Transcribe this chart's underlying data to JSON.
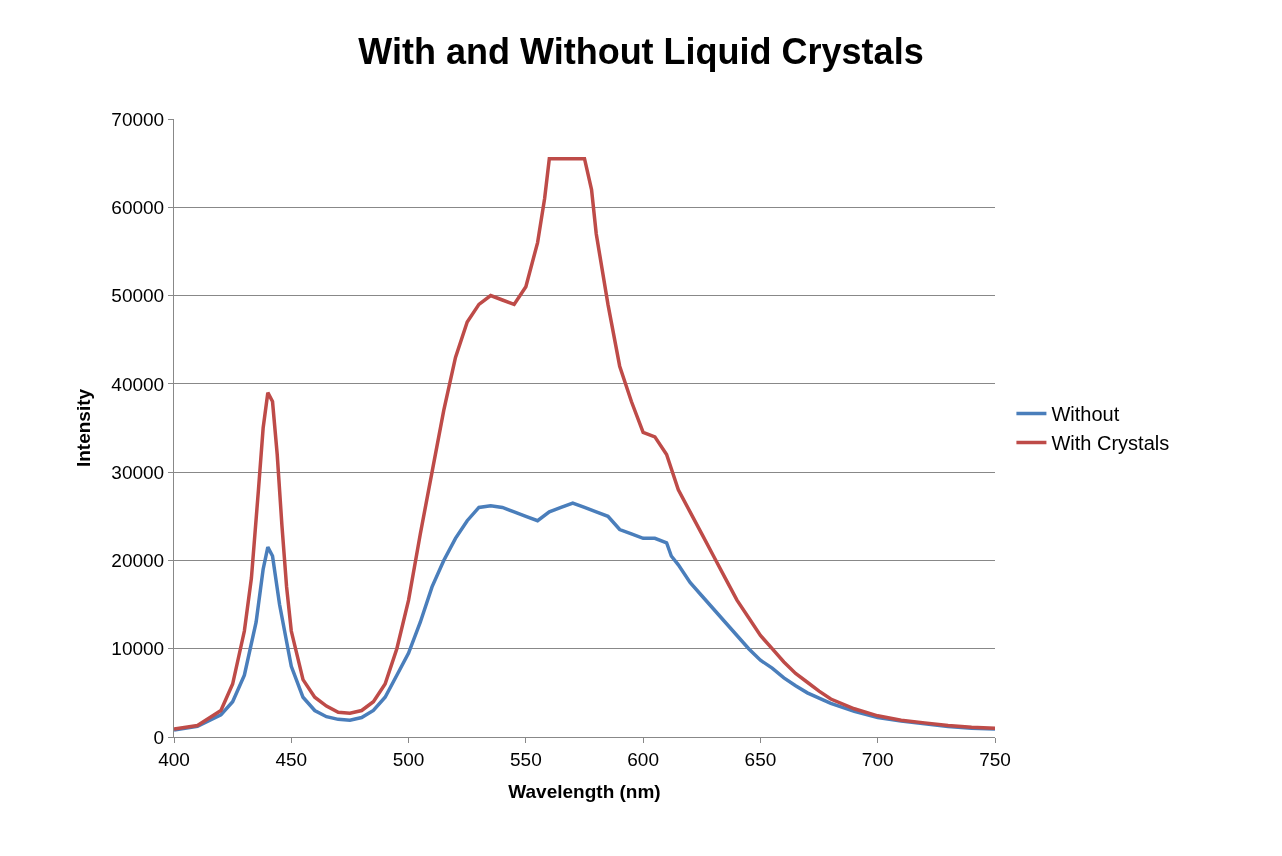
{
  "chart_data": {
    "type": "line",
    "title": "With and Without Liquid Crystals",
    "xlabel": "Wavelength (nm)",
    "ylabel": "Intensity",
    "xlim": [
      400,
      750
    ],
    "xticks": [
      400,
      450,
      500,
      550,
      600,
      650,
      700,
      750
    ],
    "ylim": [
      0,
      70000
    ],
    "yticks": [
      0,
      10000,
      20000,
      30000,
      40000,
      50000,
      60000,
      70000
    ],
    "grid": "y",
    "legend": "right",
    "marker": "none",
    "line_style": "solid",
    "series": [
      {
        "name": "Without",
        "color": "#4a7ebb",
        "x": [
          400,
          410,
          420,
          425,
          430,
          435,
          438,
          440,
          442,
          445,
          450,
          455,
          460,
          465,
          470,
          475,
          480,
          485,
          490,
          495,
          500,
          505,
          510,
          515,
          520,
          525,
          530,
          535,
          540,
          545,
          550,
          555,
          560,
          565,
          570,
          575,
          580,
          585,
          590,
          595,
          600,
          605,
          610,
          612,
          615,
          620,
          625,
          630,
          635,
          640,
          645,
          650,
          655,
          660,
          665,
          670,
          675,
          680,
          690,
          700,
          710,
          720,
          730,
          740,
          750
        ],
        "values": [
          800,
          1200,
          2500,
          4000,
          7000,
          13000,
          19000,
          21500,
          20500,
          15000,
          8000,
          4500,
          3000,
          2300,
          2000,
          1900,
          2200,
          3000,
          4500,
          7000,
          9500,
          13000,
          17000,
          20000,
          22500,
          24500,
          26000,
          26200,
          26000,
          25500,
          25000,
          24500,
          25500,
          26000,
          26500,
          26000,
          25500,
          25000,
          23500,
          23000,
          22500,
          22500,
          22000,
          20500,
          19500,
          17500,
          16000,
          14500,
          13000,
          11500,
          10000,
          8700,
          7800,
          6700,
          5800,
          5000,
          4400,
          3800,
          2900,
          2200,
          1800,
          1500,
          1200,
          1000,
          900
        ]
      },
      {
        "name": "With Crystals",
        "color": "#be4b48",
        "x": [
          400,
          410,
          420,
          425,
          430,
          433,
          436,
          438,
          440,
          442,
          444,
          446,
          448,
          450,
          455,
          460,
          465,
          470,
          475,
          480,
          485,
          490,
          495,
          500,
          505,
          510,
          515,
          520,
          525,
          530,
          535,
          540,
          545,
          550,
          555,
          558,
          560,
          575,
          578,
          580,
          585,
          590,
          595,
          600,
          605,
          610,
          615,
          620,
          625,
          630,
          635,
          640,
          645,
          650,
          655,
          660,
          665,
          670,
          675,
          680,
          690,
          700,
          710,
          720,
          730,
          740,
          750
        ],
        "values": [
          900,
          1300,
          3000,
          6000,
          12000,
          18000,
          28000,
          35000,
          39000,
          38000,
          32000,
          24000,
          17000,
          12000,
          6500,
          4500,
          3500,
          2800,
          2700,
          3000,
          4000,
          6000,
          10000,
          15500,
          23000,
          30000,
          37000,
          43000,
          47000,
          49000,
          50000,
          49500,
          49000,
          51000,
          56000,
          61000,
          65500,
          65500,
          62000,
          57000,
          49000,
          42000,
          38000,
          34500,
          34000,
          32000,
          28000,
          25500,
          23000,
          20500,
          18000,
          15500,
          13500,
          11500,
          10000,
          8500,
          7200,
          6200,
          5200,
          4300,
          3200,
          2400,
          1900,
          1600,
          1300,
          1100,
          1000
        ]
      }
    ]
  }
}
